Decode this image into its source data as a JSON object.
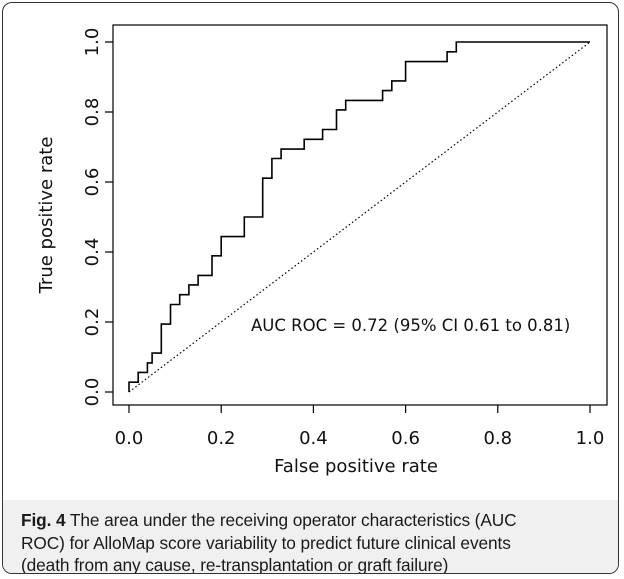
{
  "chart_data": {
    "type": "line",
    "xlabel": "False positive rate",
    "ylabel": "True positive rate",
    "xlim": [
      0,
      1
    ],
    "ylim": [
      0,
      1
    ],
    "x_ticks": [
      "0.0",
      "0.2",
      "0.4",
      "0.6",
      "0.8",
      "1.0"
    ],
    "y_ticks": [
      "0.0",
      "0.2",
      "0.4",
      "0.6",
      "0.8",
      "1.0"
    ],
    "grid": false,
    "annotation": "AUC ROC = 0.72 (95% CI 0.61 to 0.81)",
    "series": [
      {
        "style": "step",
        "x": [
          0.0,
          0.0,
          0.01,
          0.01,
          0.02,
          0.02,
          0.04,
          0.04,
          0.05,
          0.05,
          0.07,
          0.07,
          0.09,
          0.09,
          0.11,
          0.11,
          0.13,
          0.13,
          0.15,
          0.15,
          0.18,
          0.18,
          0.2,
          0.2,
          0.25,
          0.25,
          0.29,
          0.29,
          0.31,
          0.31,
          0.33,
          0.33,
          0.38,
          0.38,
          0.42,
          0.42,
          0.45,
          0.45,
          0.47,
          0.47,
          0.55,
          0.55,
          0.57,
          0.57,
          0.6,
          0.6,
          0.69,
          0.69,
          0.71,
          0.71,
          1.0
        ],
        "y": [
          0.0,
          0.028,
          0.028,
          0.028,
          0.028,
          0.056,
          0.056,
          0.083,
          0.083,
          0.111,
          0.111,
          0.194,
          0.194,
          0.25,
          0.25,
          0.278,
          0.278,
          0.306,
          0.306,
          0.333,
          0.333,
          0.389,
          0.389,
          0.444,
          0.444,
          0.5,
          0.5,
          0.611,
          0.611,
          0.667,
          0.667,
          0.694,
          0.694,
          0.722,
          0.722,
          0.75,
          0.75,
          0.806,
          0.806,
          0.833,
          0.833,
          0.861,
          0.861,
          0.889,
          0.889,
          0.944,
          0.944,
          0.972,
          0.972,
          1.0,
          1.0
        ]
      },
      {
        "style": "dotted",
        "x": [
          0,
          1
        ],
        "y": [
          0,
          1
        ]
      }
    ]
  },
  "caption": {
    "label": "Fig. 4",
    "line1": " The area under the receiving operator characteristics (AUC",
    "line2": "ROC) for AlloMap score variability to predict future clinical events",
    "line3": "(death from any cause, re-transplantation or graft failure)"
  }
}
